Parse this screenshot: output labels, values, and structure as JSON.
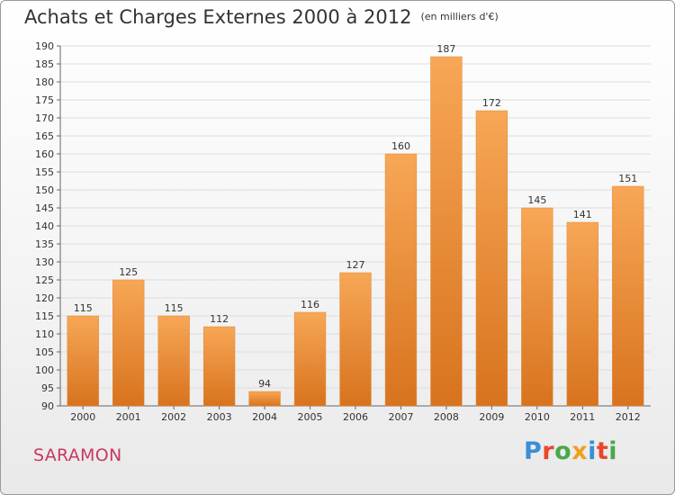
{
  "title": "Achats et Charges Externes 2000 à 2012",
  "unit_note": "(en milliers d'€)",
  "commune": "SARAMON",
  "logo_text": "Proxiti",
  "colors": {
    "bar_top": "#f7a756",
    "bar_bottom": "#d8731e",
    "title": "#333333",
    "commune": "#c8385f",
    "grid": "#dddddd"
  },
  "chart_data": {
    "type": "bar",
    "title": "Achats et Charges Externes 2000 à 2012",
    "subtitle": "(en milliers d'€)",
    "categories": [
      "2000",
      "2001",
      "2002",
      "2003",
      "2004",
      "2005",
      "2006",
      "2007",
      "2008",
      "2009",
      "2010",
      "2011",
      "2012"
    ],
    "values": [
      115,
      125,
      115,
      112,
      94,
      116,
      127,
      160,
      187,
      172,
      145,
      141,
      151
    ],
    "ylim": [
      90,
      190
    ],
    "yticks": [
      90,
      95,
      100,
      105,
      110,
      115,
      120,
      125,
      130,
      135,
      140,
      145,
      150,
      155,
      160,
      165,
      170,
      175,
      180,
      185,
      190
    ],
    "grid": true,
    "data_labels": true
  }
}
